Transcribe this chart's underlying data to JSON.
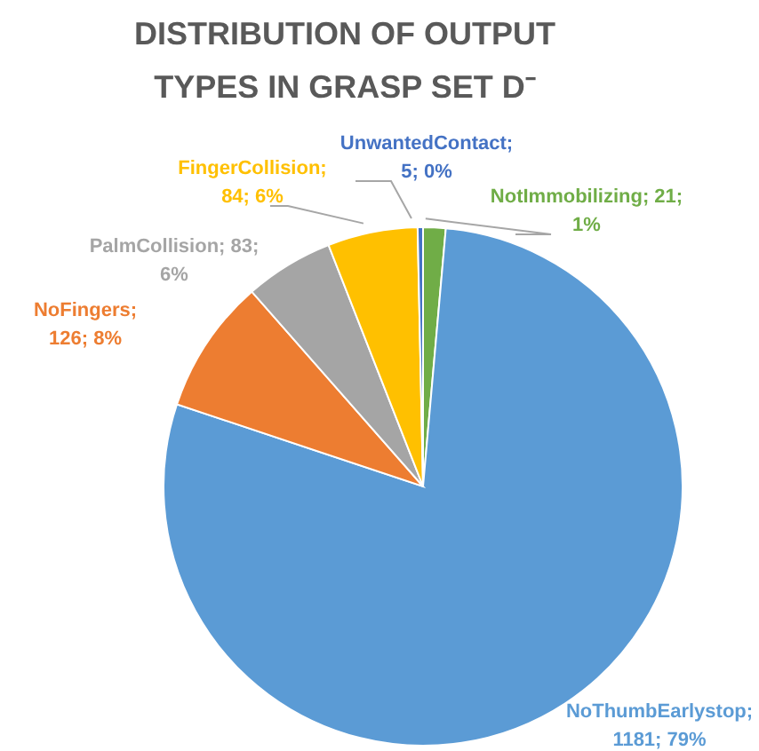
{
  "chart_data": {
    "type": "pie",
    "title": "DISTRIBUTION OF OUTPUT TYPES IN GRASP SET D⁻",
    "categories": [
      "NotImmobilizing",
      "NoThumbEarlystop",
      "NoFingers",
      "PalmCollision",
      "FingerCollision",
      "UnwantedContact"
    ],
    "values": [
      21,
      1181,
      126,
      83,
      84,
      5
    ],
    "colors": [
      "#70ad47",
      "#5b9bd5",
      "#ed7d31",
      "#a5a5a5",
      "#ffc000",
      "#4472c4"
    ],
    "value_labels": [
      "; 21; 1%",
      "; 1181; 79%",
      "; 126; 8%",
      "; 83; 6%",
      "; 84; 6%",
      "; 5; 0%"
    ]
  }
}
